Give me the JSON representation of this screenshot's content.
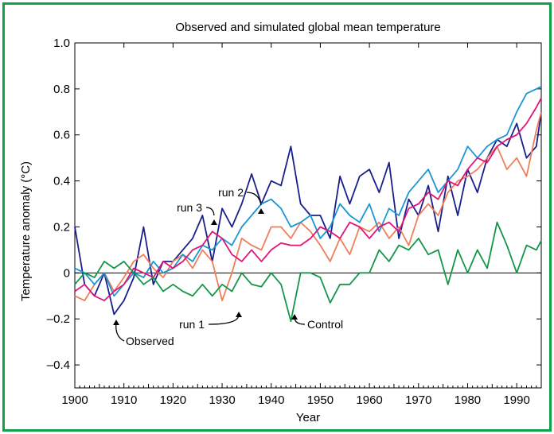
{
  "chart_data": {
    "type": "line",
    "title": "Observed and simulated global mean temperature",
    "xlabel": "Year",
    "ylabel": "Temperature anomaly (°C)",
    "xlim": [
      1900,
      1995
    ],
    "ylim": [
      -0.5,
      1.0
    ],
    "xticks": [
      1900,
      1910,
      1920,
      1930,
      1940,
      1950,
      1960,
      1970,
      1980,
      1990
    ],
    "yticks": [
      -0.4,
      -0.2,
      0,
      0.2,
      0.4,
      0.6,
      0.8,
      1.0
    ],
    "ytick_labels": [
      "–0.4",
      "–0.2",
      "0",
      "0.2",
      "0.4",
      "0.6",
      "0.8",
      "1.0"
    ],
    "zero_line": true,
    "grid": false,
    "series": [
      {
        "name": "Observed",
        "color": "#1a1f8a",
        "x": [
          1900,
          1902,
          1904,
          1906,
          1908,
          1910,
          1912,
          1914,
          1916,
          1918,
          1920,
          1922,
          1924,
          1926,
          1928,
          1930,
          1932,
          1934,
          1936,
          1938,
          1940,
          1942,
          1944,
          1946,
          1948,
          1950,
          1952,
          1954,
          1956,
          1958,
          1960,
          1962,
          1964,
          1966,
          1968,
          1970,
          1972,
          1974,
          1976,
          1978,
          1980,
          1982,
          1984,
          1986,
          1988,
          1990,
          1992,
          1994,
          1995
        ],
        "y": [
          0.2,
          -0.05,
          -0.1,
          0.0,
          -0.18,
          -0.12,
          -0.02,
          0.2,
          -0.05,
          0.05,
          0.05,
          0.1,
          0.15,
          0.25,
          0.05,
          0.28,
          0.2,
          0.3,
          0.43,
          0.3,
          0.4,
          0.38,
          0.55,
          0.3,
          0.25,
          0.25,
          0.15,
          0.42,
          0.3,
          0.42,
          0.45,
          0.35,
          0.48,
          0.15,
          0.32,
          0.25,
          0.38,
          0.18,
          0.42,
          0.25,
          0.45,
          0.35,
          0.5,
          0.58,
          0.55,
          0.65,
          0.5,
          0.55,
          0.7
        ]
      },
      {
        "name": "run 1",
        "color": "#ef7f5b",
        "x": [
          1900,
          1902,
          1904,
          1906,
          1908,
          1910,
          1912,
          1914,
          1916,
          1918,
          1920,
          1922,
          1924,
          1926,
          1928,
          1930,
          1932,
          1934,
          1936,
          1938,
          1940,
          1942,
          1944,
          1946,
          1948,
          1950,
          1952,
          1954,
          1956,
          1958,
          1960,
          1962,
          1964,
          1966,
          1968,
          1970,
          1972,
          1974,
          1976,
          1978,
          1980,
          1982,
          1984,
          1986,
          1988,
          1990,
          1992,
          1994,
          1995
        ],
        "y": [
          -0.1,
          -0.12,
          -0.05,
          0.0,
          -0.08,
          -0.02,
          0.05,
          0.08,
          0.02,
          -0.02,
          0.05,
          0.08,
          0.02,
          0.1,
          0.05,
          -0.12,
          0.0,
          0.15,
          0.12,
          0.1,
          0.2,
          0.2,
          0.15,
          0.22,
          0.18,
          0.12,
          0.05,
          0.15,
          0.08,
          0.2,
          0.18,
          0.22,
          0.15,
          0.2,
          0.12,
          0.25,
          0.3,
          0.25,
          0.35,
          0.4,
          0.42,
          0.45,
          0.5,
          0.55,
          0.45,
          0.5,
          0.42,
          0.62,
          0.7
        ]
      },
      {
        "name": "run 2",
        "color": "#1a96d4",
        "x": [
          1900,
          1902,
          1904,
          1906,
          1908,
          1910,
          1912,
          1914,
          1916,
          1918,
          1920,
          1922,
          1924,
          1926,
          1928,
          1930,
          1932,
          1934,
          1936,
          1938,
          1940,
          1942,
          1944,
          1946,
          1948,
          1950,
          1952,
          1954,
          1956,
          1958,
          1960,
          1962,
          1964,
          1966,
          1968,
          1970,
          1972,
          1974,
          1976,
          1978,
          1980,
          1982,
          1984,
          1986,
          1988,
          1990,
          1992,
          1994,
          1995
        ],
        "y": [
          0.02,
          0.0,
          -0.05,
          0.0,
          -0.1,
          -0.05,
          0.0,
          -0.02,
          0.05,
          0.0,
          0.02,
          0.08,
          0.05,
          0.12,
          0.1,
          0.15,
          0.12,
          0.2,
          0.25,
          0.3,
          0.32,
          0.28,
          0.2,
          0.22,
          0.25,
          0.15,
          0.2,
          0.3,
          0.25,
          0.22,
          0.3,
          0.18,
          0.28,
          0.25,
          0.35,
          0.4,
          0.45,
          0.35,
          0.4,
          0.45,
          0.55,
          0.5,
          0.55,
          0.58,
          0.6,
          0.7,
          0.78,
          0.8,
          0.81
        ]
      },
      {
        "name": "run 3",
        "color": "#e0147a",
        "x": [
          1900,
          1902,
          1904,
          1906,
          1908,
          1910,
          1912,
          1914,
          1916,
          1918,
          1920,
          1922,
          1924,
          1926,
          1928,
          1930,
          1932,
          1934,
          1936,
          1938,
          1940,
          1942,
          1944,
          1946,
          1948,
          1950,
          1952,
          1954,
          1956,
          1958,
          1960,
          1962,
          1964,
          1966,
          1968,
          1970,
          1972,
          1974,
          1976,
          1978,
          1980,
          1982,
          1984,
          1986,
          1988,
          1990,
          1992,
          1994,
          1995
        ],
        "y": [
          -0.08,
          -0.05,
          -0.1,
          -0.12,
          -0.08,
          -0.05,
          0.02,
          0.0,
          -0.02,
          0.05,
          0.02,
          0.05,
          0.1,
          0.12,
          0.18,
          0.15,
          0.08,
          0.05,
          0.1,
          0.05,
          0.1,
          0.13,
          0.12,
          0.12,
          0.15,
          0.2,
          0.18,
          0.15,
          0.22,
          0.2,
          0.15,
          0.2,
          0.22,
          0.18,
          0.28,
          0.3,
          0.35,
          0.32,
          0.4,
          0.38,
          0.45,
          0.5,
          0.48,
          0.55,
          0.58,
          0.6,
          0.65,
          0.72,
          0.76
        ]
      },
      {
        "name": "Control",
        "color": "#149648",
        "x": [
          1900,
          1902,
          1904,
          1906,
          1908,
          1910,
          1912,
          1914,
          1916,
          1918,
          1920,
          1922,
          1924,
          1926,
          1928,
          1930,
          1932,
          1934,
          1936,
          1938,
          1940,
          1942,
          1944,
          1946,
          1948,
          1950,
          1952,
          1954,
          1956,
          1958,
          1960,
          1962,
          1964,
          1966,
          1968,
          1970,
          1972,
          1974,
          1976,
          1978,
          1980,
          1982,
          1984,
          1986,
          1988,
          1990,
          1992,
          1994,
          1995
        ],
        "y": [
          -0.05,
          0.0,
          -0.02,
          0.05,
          0.02,
          0.05,
          0.0,
          -0.05,
          -0.02,
          -0.08,
          -0.05,
          -0.08,
          -0.1,
          -0.05,
          -0.1,
          -0.05,
          -0.08,
          0.0,
          -0.05,
          -0.06,
          0.0,
          -0.05,
          -0.21,
          0.0,
          0.0,
          -0.02,
          -0.13,
          -0.05,
          -0.05,
          0.0,
          0.0,
          0.1,
          0.05,
          0.12,
          0.1,
          0.15,
          0.08,
          0.1,
          -0.05,
          0.1,
          0.0,
          0.1,
          0.02,
          0.22,
          0.12,
          0.0,
          0.12,
          0.1,
          0.14
        ]
      }
    ],
    "annotations": [
      {
        "text": "Observed",
        "series": "Observed"
      },
      {
        "text": "run 1",
        "series": "run 1"
      },
      {
        "text": "run 2",
        "series": "run 2"
      },
      {
        "text": "run 3",
        "series": "run 3"
      },
      {
        "text": "Control",
        "series": "Control"
      }
    ]
  }
}
